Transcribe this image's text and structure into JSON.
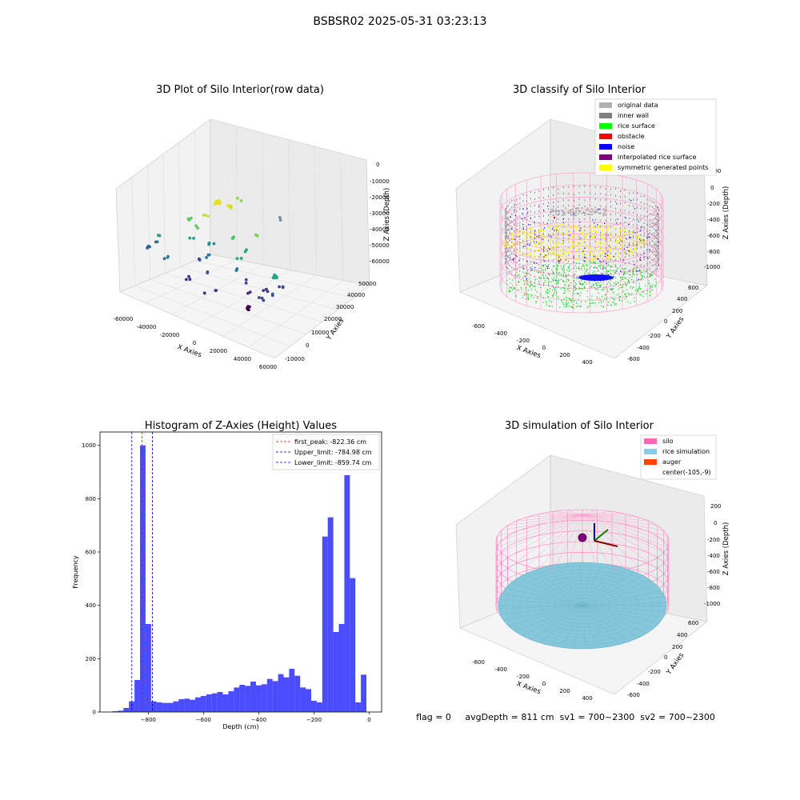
{
  "suptitle": "BSBSR02 2025-05-31 03:23:13",
  "panel1": {
    "title": "3D Plot of Silo Interior(row data)",
    "xlabel": "X Axies",
    "ylabel": "Y Axies",
    "zlabel": "Z Axies (Depth)",
    "xticks": [
      "-60000",
      "-40000",
      "-20000",
      "0",
      "20000",
      "40000",
      "60000"
    ],
    "yticks": [
      "-10000",
      "0",
      "10000",
      "20000",
      "30000",
      "40000",
      "50000"
    ],
    "zticks": [
      "0",
      "-10000",
      "-20000",
      "-30000",
      "-40000",
      "-50000",
      "-60000"
    ]
  },
  "panel2": {
    "title": "3D classify of Silo Interior",
    "xlabel": "X Axies",
    "ylabel": "Y Axies",
    "zlabel": "Z Axies (Depth)",
    "xticks": [
      "-600",
      "-400",
      "-200",
      "0",
      "200",
      "400"
    ],
    "yticks": [
      "-600",
      "-400",
      "-200",
      "0",
      "200",
      "400",
      "600"
    ],
    "zticks": [
      "200",
      "0",
      "-200",
      "-400",
      "-600",
      "-800",
      "-1000"
    ],
    "legend": [
      {
        "label": "original data",
        "color": "#b0b0b0"
      },
      {
        "label": "inner wall",
        "color": "#808080"
      },
      {
        "label": "rice surface",
        "color": "#00ff00"
      },
      {
        "label": "obstacle",
        "color": "#ff0000"
      },
      {
        "label": "noise",
        "color": "#0000ff"
      },
      {
        "label": "interpolated rice surface",
        "color": "#800080"
      },
      {
        "label": "symmetric generated points",
        "color": "#ffff00"
      }
    ]
  },
  "panel3": {
    "title": "3D simulation of Silo Interior",
    "xlabel": "X Axies",
    "ylabel": "Y Axies",
    "zlabel": "Z Axies (Depth)",
    "xticks": [
      "-600",
      "-400",
      "-200",
      "0",
      "200",
      "400"
    ],
    "yticks": [
      "-600",
      "-400",
      "-200",
      "0",
      "200",
      "400",
      "600"
    ],
    "zticks": [
      "200",
      "0",
      "-200",
      "-400",
      "-600",
      "-800",
      "-1000"
    ],
    "legend": [
      {
        "label": "silo",
        "color": "#ff69b4"
      },
      {
        "label": "rice simulation",
        "color": "#87ceeb"
      },
      {
        "label": "auger",
        "color": "#ff4500"
      },
      {
        "label": "center(-105,-9)",
        "color": ""
      }
    ]
  },
  "status_text": "flag = 0     avgDepth = 811 cm  sv1 = 700~2300  sv2 = 700~2300",
  "chart_data": {
    "type": "bar",
    "title": "Histogram of Z-Axies (Height) Values",
    "xlabel": "Depth (cm)",
    "ylabel": "Frequency",
    "xlim": [
      -975,
      45
    ],
    "ylim": [
      0,
      1050
    ],
    "xticks": [
      -800,
      -600,
      -400,
      -200,
      0
    ],
    "yticks": [
      0,
      200,
      400,
      600,
      800,
      1000
    ],
    "bar_color": "#0000ff",
    "bin_left_edges": [
      -950,
      -930,
      -910,
      -890,
      -870,
      -850,
      -830,
      -810,
      -790,
      -770,
      -750,
      -730,
      -710,
      -690,
      -670,
      -650,
      -630,
      -610,
      -590,
      -570,
      -550,
      -530,
      -510,
      -490,
      -470,
      -450,
      -430,
      -410,
      -390,
      -370,
      -350,
      -330,
      -310,
      -290,
      -270,
      -250,
      -230,
      -210,
      -190,
      -170,
      -150,
      -130,
      -110,
      -90,
      -70,
      -50,
      -30,
      -10
    ],
    "bin_width": 20,
    "values": [
      0,
      3,
      5,
      15,
      40,
      120,
      1000,
      330,
      40,
      36,
      34,
      34,
      40,
      48,
      50,
      46,
      55,
      60,
      66,
      70,
      75,
      66,
      78,
      92,
      102,
      98,
      114,
      100,
      104,
      124,
      116,
      142,
      130,
      162,
      136,
      92,
      86,
      42,
      36,
      658,
      730,
      300,
      330,
      888,
      502,
      36,
      140,
      0
    ],
    "lines": [
      {
        "label": "first_peak: -822.36 cm",
        "x": -822.36,
        "color": "#ff0000"
      },
      {
        "label": "Upper_limit: -784.98 cm",
        "x": -784.98,
        "color": "#0000a0"
      },
      {
        "label": "Lower_limit: -859.74 cm",
        "x": -859.74,
        "color": "#0000ff"
      }
    ]
  }
}
